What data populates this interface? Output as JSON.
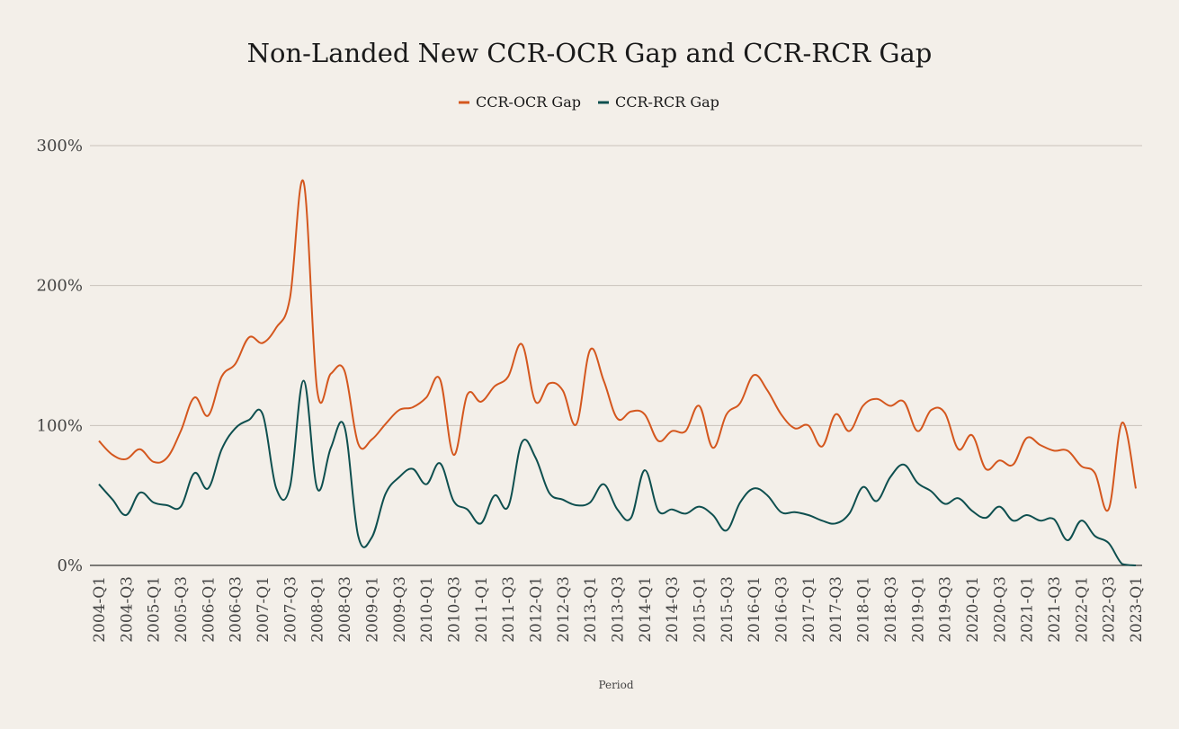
{
  "chart_data": {
    "type": "line",
    "title": "Non-Landed New CCR-OCR Gap and CCR-RCR Gap",
    "xlabel": "Period",
    "ylabel": "",
    "ylim": [
      0,
      300
    ],
    "yticks": [
      0,
      100,
      200,
      300
    ],
    "ytick_labels": [
      "0%",
      "100%",
      "200%",
      "300%"
    ],
    "grid": true,
    "legend": "top-center",
    "categories": [
      "2004-Q1",
      "2004-Q2",
      "2004-Q3",
      "2004-Q4",
      "2005-Q1",
      "2005-Q2",
      "2005-Q3",
      "2005-Q4",
      "2006-Q1",
      "2006-Q2",
      "2006-Q3",
      "2006-Q4",
      "2007-Q1",
      "2007-Q2",
      "2007-Q3",
      "2007-Q4",
      "2008-Q1",
      "2008-Q2",
      "2008-Q3",
      "2008-Q4",
      "2009-Q1",
      "2009-Q2",
      "2009-Q3",
      "2009-Q4",
      "2010-Q1",
      "2010-Q2",
      "2010-Q3",
      "2010-Q4",
      "2011-Q1",
      "2011-Q2",
      "2011-Q3",
      "2011-Q4",
      "2012-Q1",
      "2012-Q2",
      "2012-Q3",
      "2012-Q4",
      "2013-Q1",
      "2013-Q2",
      "2013-Q3",
      "2013-Q4",
      "2014-Q1",
      "2014-Q2",
      "2014-Q3",
      "2014-Q4",
      "2015-Q1",
      "2015-Q2",
      "2015-Q3",
      "2015-Q4",
      "2016-Q1",
      "2016-Q2",
      "2016-Q3",
      "2016-Q4",
      "2017-Q1",
      "2017-Q2",
      "2017-Q3",
      "2017-Q4",
      "2018-Q1",
      "2018-Q2",
      "2018-Q3",
      "2018-Q4",
      "2019-Q1",
      "2019-Q2",
      "2019-Q3",
      "2019-Q4",
      "2020-Q1",
      "2020-Q2",
      "2020-Q3",
      "2020-Q4",
      "2021-Q1",
      "2021-Q2",
      "2021-Q3",
      "2021-Q4",
      "2022-Q1",
      "2022-Q2",
      "2022-Q3",
      "2022-Q4",
      "2023-Q1"
    ],
    "tick_labels": [
      "2004-Q1",
      "2004-Q3",
      "2005-Q1",
      "2005-Q3",
      "2006-Q1",
      "2006-Q3",
      "2007-Q1",
      "2007-Q3",
      "2008-Q1",
      "2008-Q3",
      "2009-Q1",
      "2009-Q3",
      "2010-Q1",
      "2010-Q3",
      "2011-Q1",
      "2011-Q3",
      "2012-Q1",
      "2012-Q3",
      "2013-Q1",
      "2013-Q3",
      "2014-Q1",
      "2014-Q3",
      "2015-Q1",
      "2015-Q3",
      "2016-Q1",
      "2016-Q3",
      "2017-Q1",
      "2017-Q3",
      "2018-Q1",
      "2018-Q3",
      "2019-Q1",
      "2019-Q3",
      "2020-Q1",
      "2020-Q3",
      "2021-Q1",
      "2021-Q3",
      "2022-Q1",
      "2022-Q3",
      "2023-Q1"
    ],
    "series": [
      {
        "name": "CCR-OCR Gap",
        "color": "#d4571e",
        "values": [
          89,
          79,
          76,
          83,
          74,
          77,
          96,
          120,
          107,
          135,
          144,
          163,
          159,
          170,
          191,
          274,
          125,
          137,
          139,
          87,
          90,
          101,
          111,
          113,
          120,
          133,
          79,
          122,
          117,
          128,
          135,
          158,
          117,
          130,
          125,
          101,
          154,
          132,
          105,
          110,
          108,
          89,
          96,
          96,
          114,
          84,
          108,
          116,
          136,
          125,
          108,
          98,
          100,
          85,
          108,
          96,
          114,
          119,
          114,
          117,
          96,
          111,
          109,
          83,
          93,
          69,
          75,
          72,
          91,
          86,
          82,
          82,
          71,
          66,
          40,
          102,
          55
        ]
      },
      {
        "name": "CCR-RCR Gap",
        "color": "#0e4f4f",
        "values": [
          58,
          47,
          36,
          52,
          45,
          43,
          42,
          66,
          55,
          83,
          98,
          104,
          108,
          55,
          56,
          132,
          55,
          84,
          99,
          21,
          20,
          51,
          63,
          69,
          58,
          73,
          46,
          40,
          30,
          50,
          42,
          88,
          77,
          52,
          47,
          43,
          45,
          58,
          40,
          34,
          68,
          39,
          40,
          37,
          42,
          36,
          25,
          45,
          55,
          50,
          38,
          38,
          36,
          32,
          30,
          37,
          56,
          46,
          63,
          72,
          59,
          53,
          44,
          48,
          39,
          34,
          42,
          32,
          36,
          32,
          33,
          18,
          32,
          21,
          16,
          1,
          0
        ]
      }
    ]
  }
}
